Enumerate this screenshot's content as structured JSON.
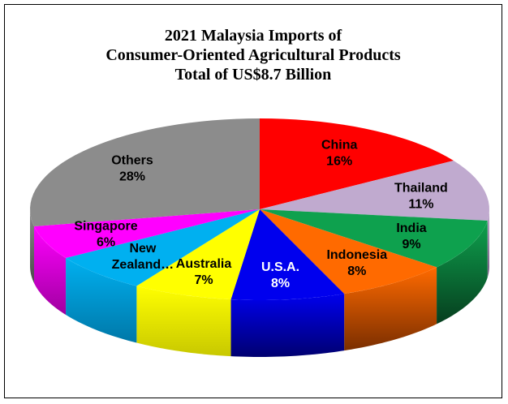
{
  "chart_data": {
    "type": "pie",
    "title_lines": [
      "2021 Malaysia Imports of",
      "Consumer-Oriented Agricultural Products",
      "Total of US$8.7 Billion"
    ],
    "unit": "%",
    "slices": [
      {
        "name": "China",
        "label_lines": [
          "China"
        ],
        "value": 16,
        "value_label": "16%",
        "color": "#FF0000",
        "side": "#8B0000",
        "label_color": "#000000"
      },
      {
        "name": "Thailand",
        "label_lines": [
          "Thailand"
        ],
        "value": 11,
        "value_label": "11%",
        "color": "#C0AACF",
        "side": "#6E5A7E",
        "label_color": "#000000"
      },
      {
        "name": "India",
        "label_lines": [
          "India"
        ],
        "value": 9,
        "value_label": "9%",
        "color": "#0EA14E",
        "side": "#063E1E",
        "label_color": "#000000"
      },
      {
        "name": "Indonesia",
        "label_lines": [
          "Indonesia"
        ],
        "value": 8,
        "value_label": "8%",
        "color": "#FF6A00",
        "side": "#7A2E00",
        "label_color": "#000000"
      },
      {
        "name": "U.S.A.",
        "label_lines": [
          "U.S.A."
        ],
        "value": 8,
        "value_label": "8%",
        "color": "#0000EE",
        "side": "#000070",
        "label_color": "#FFFFFF"
      },
      {
        "name": "Australia",
        "label_lines": [
          "Australia"
        ],
        "value": 7,
        "value_label": "7%",
        "color": "#FFFF00",
        "side": "#C8C800",
        "label_color": "#000000"
      },
      {
        "name": "New Zealand",
        "label_lines": [
          "New",
          "Zealand…"
        ],
        "value": 7,
        "value_label": "",
        "color": "#00B0F0",
        "side": "#0078A8",
        "label_color": "#000000"
      },
      {
        "name": "Singapore",
        "label_lines": [
          "Singapore"
        ],
        "value": 6,
        "value_label": "6%",
        "color": "#FF00FF",
        "side": "#A000A0",
        "label_color": "#000000"
      },
      {
        "name": "Others",
        "label_lines": [
          "Others"
        ],
        "value": 28,
        "value_label": "28%",
        "color": "#8C8C8C",
        "side": "#4A4A4A",
        "label_color": "#000000"
      }
    ],
    "start": "top, clockwise",
    "style": "3d-tilted",
    "legend": "none"
  }
}
